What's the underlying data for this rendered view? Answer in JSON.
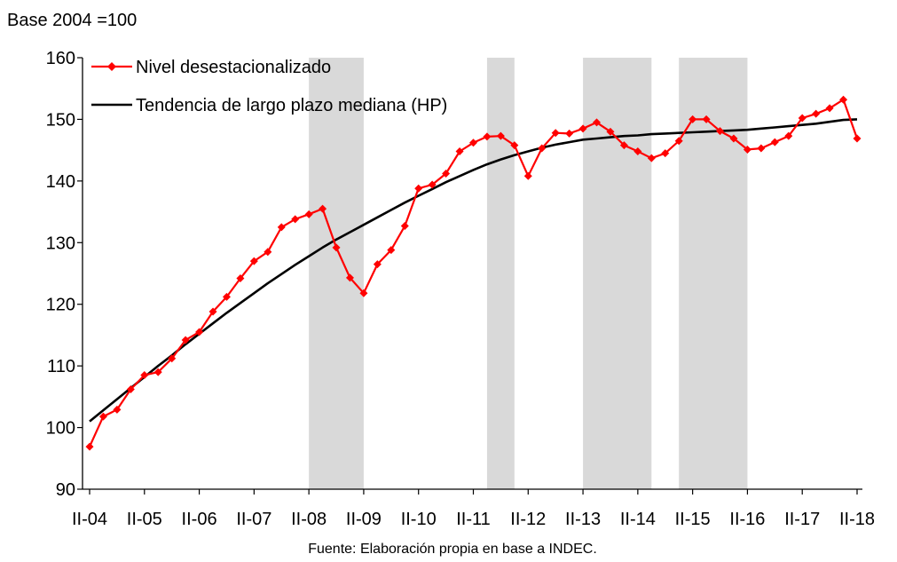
{
  "chart_data": {
    "type": "line",
    "unit_label": "Base 2004 =100",
    "source": "Fuente: Elaboración propia en base a INDEC.",
    "xlabel": "",
    "ylabel": "",
    "ylim": [
      90,
      160
    ],
    "yticks": [
      "90",
      "100",
      "110",
      "120",
      "130",
      "140",
      "150",
      "160"
    ],
    "xtick_labels": [
      "II-04",
      "II-05",
      "II-06",
      "II-07",
      "II-08",
      "II-09",
      "II-10",
      "II-11",
      "II-12",
      "II-13",
      "II-14",
      "II-15",
      "II-16",
      "II-17",
      "II-18"
    ],
    "x_start": "II-04",
    "x_end": "II-18",
    "quarters_per_year": 4,
    "grid": false,
    "legend_position": "top-left",
    "recession_shading": [
      {
        "start": "II-08",
        "end": "II-09",
        "color": "#d9d9d9"
      },
      {
        "start": "III-11",
        "end": "I-12",
        "color": "#d9d9d9"
      },
      {
        "start": "II-13",
        "end": "III-14",
        "color": "#d9d9d9"
      },
      {
        "start": "I-15",
        "end": "II-16",
        "color": "#d9d9d9"
      }
    ],
    "series": [
      {
        "name": "Nivel desestacionalizado",
        "color": "#ff0000",
        "marker": "diamond",
        "values": [
          96.9,
          101.8,
          102.9,
          106.2,
          108.5,
          109.0,
          111.2,
          114.2,
          115.5,
          118.8,
          121.2,
          124.2,
          127.0,
          128.5,
          132.5,
          133.8,
          134.6,
          135.5,
          129.2,
          124.3,
          121.8,
          126.5,
          128.8,
          132.7,
          138.8,
          139.4,
          141.2,
          144.8,
          146.2,
          147.2,
          147.3,
          145.8,
          140.8,
          145.3,
          147.8,
          147.7,
          148.5,
          149.5,
          148.0,
          145.8,
          144.8,
          143.7,
          144.5,
          146.5,
          150.0,
          150.0,
          148.1,
          146.9,
          145.1,
          145.3,
          146.3,
          147.3,
          150.2,
          150.9,
          151.8,
          153.2,
          146.9
        ]
      },
      {
        "name": "Tendencia de largo plazo mediana (HP)",
        "color": "#000000",
        "marker": "none",
        "values": [
          101.0,
          102.8,
          104.6,
          106.4,
          108.2,
          110.0,
          111.7,
          113.5,
          115.2,
          116.9,
          118.6,
          120.2,
          121.8,
          123.4,
          124.9,
          126.4,
          127.8,
          129.2,
          130.5,
          131.7,
          132.9,
          134.1,
          135.3,
          136.5,
          137.6,
          138.7,
          139.8,
          140.8,
          141.8,
          142.7,
          143.5,
          144.2,
          144.8,
          145.4,
          145.9,
          146.3,
          146.7,
          146.9,
          147.1,
          147.3,
          147.4,
          147.6,
          147.7,
          147.8,
          147.9,
          148.0,
          148.1,
          148.2,
          148.3,
          148.5,
          148.7,
          148.9,
          149.1,
          149.3,
          149.6,
          149.9,
          150.0
        ]
      }
    ]
  }
}
